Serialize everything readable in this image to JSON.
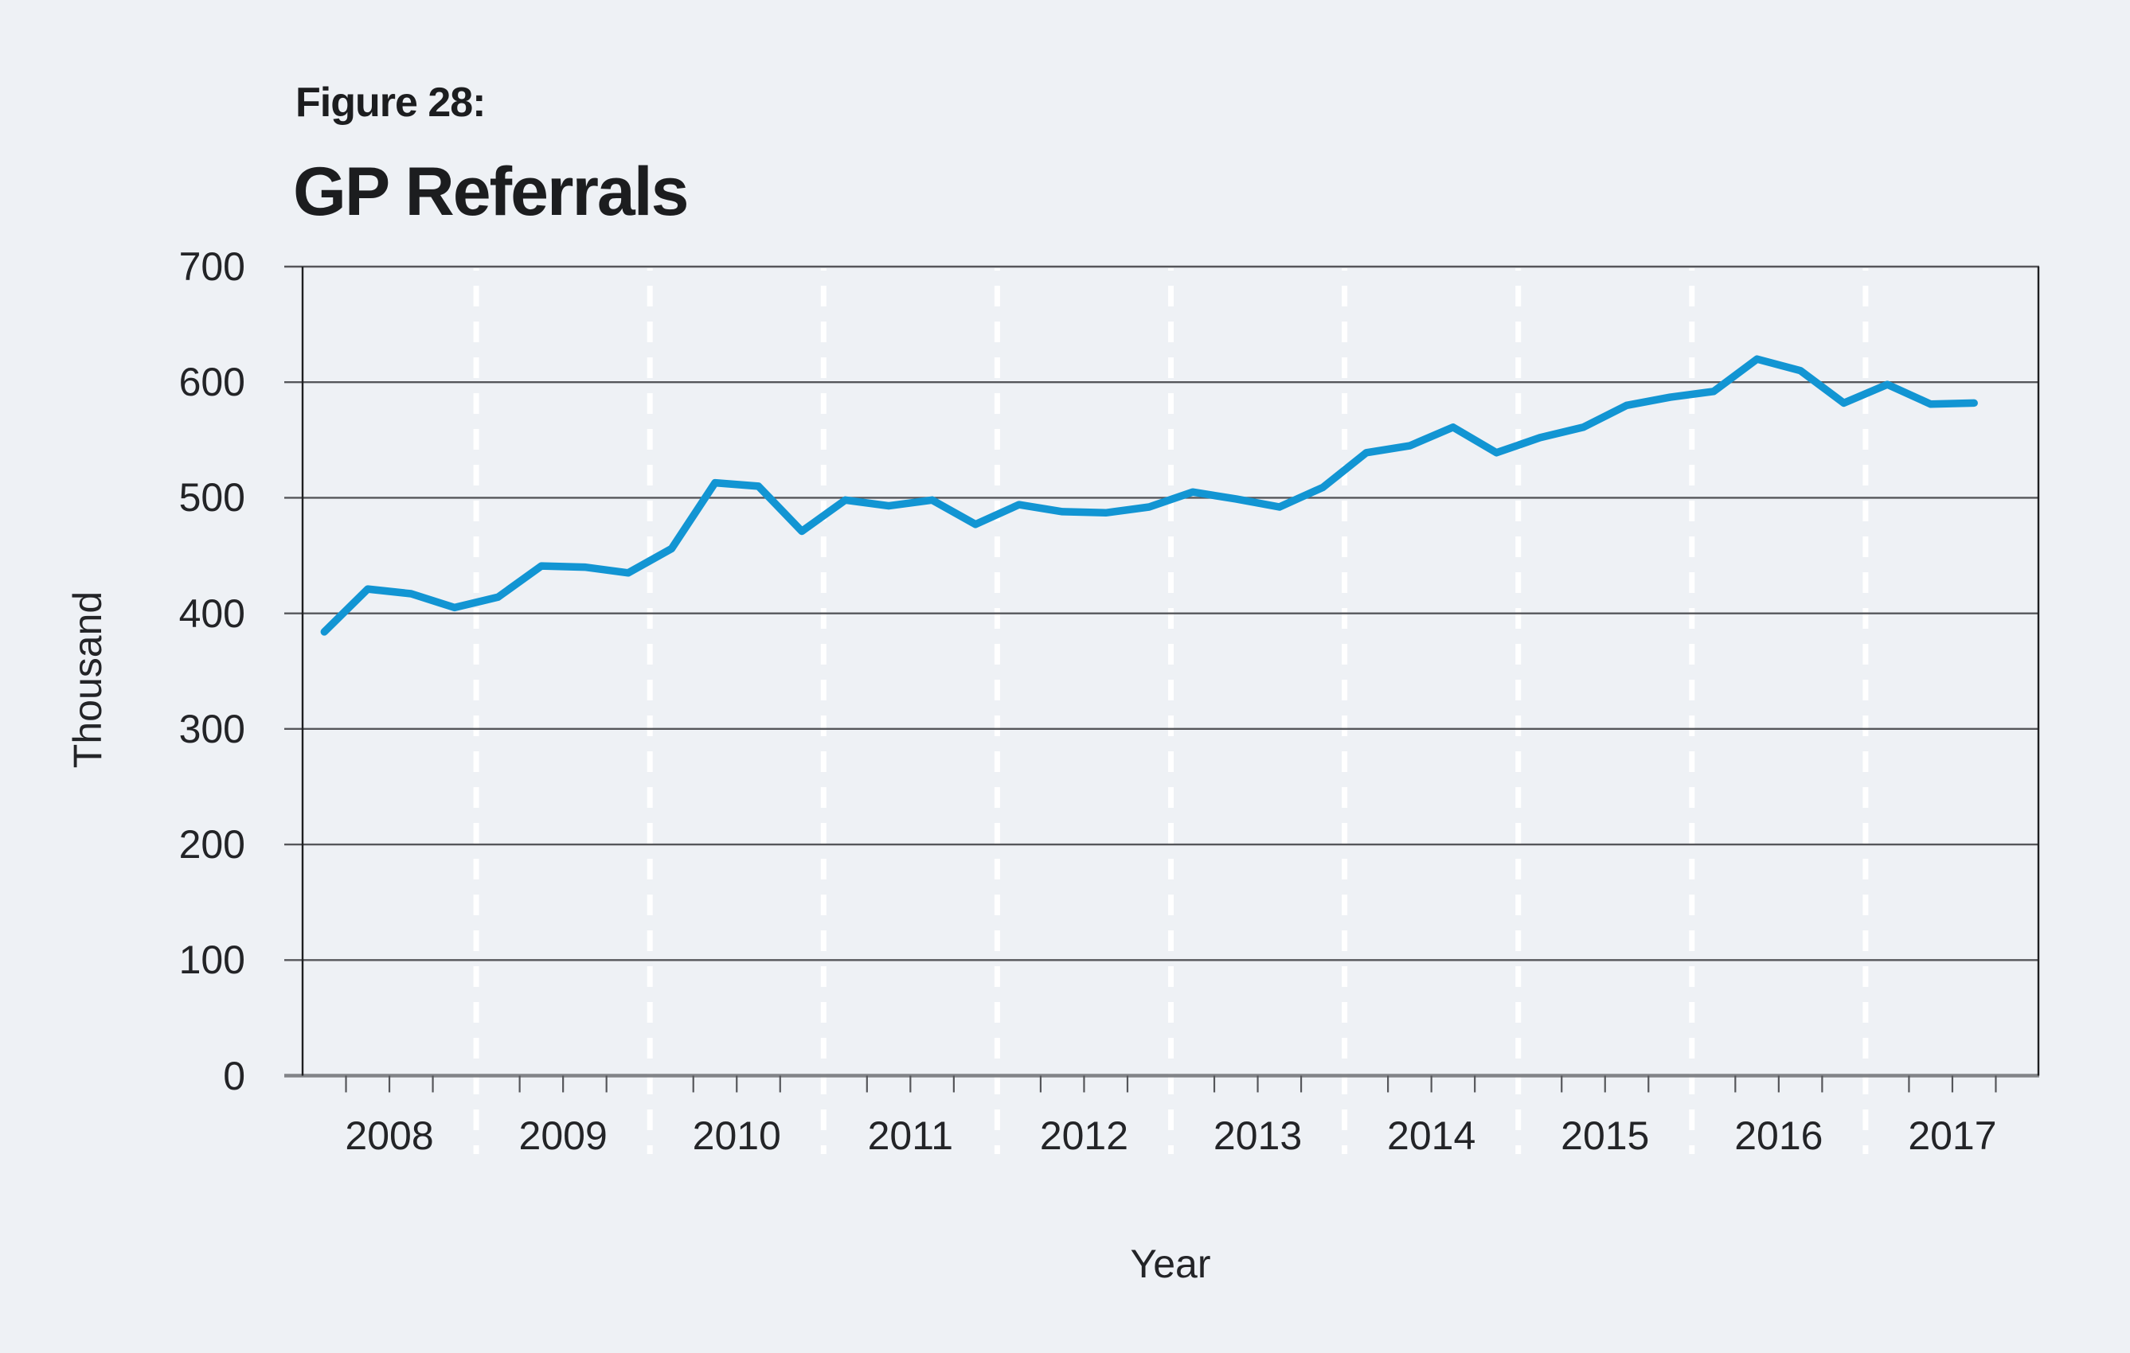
{
  "figure": {
    "label": "Figure 28:",
    "title": "GP Referrals"
  },
  "axes": {
    "y_axis_title": "Thousand",
    "x_axis_title": "Year",
    "y_tick_labels": [
      "700",
      "600",
      "500",
      "400",
      "300",
      "200",
      "100",
      "0"
    ],
    "x_tick_labels": [
      "2008",
      "2009",
      "2010",
      "2011",
      "2012",
      "2013",
      "2014",
      "2015",
      "2016",
      "2017"
    ]
  },
  "chart_data": {
    "type": "line",
    "title": "GP Referrals",
    "xlabel": "Year",
    "ylabel": "Thousand",
    "ylim": [
      0,
      700
    ],
    "y_ticks": [
      700,
      600,
      500,
      400,
      300,
      200,
      100,
      0
    ],
    "grid": "horizontal solid gray lines; vertical white dashed lines at year boundaries; quarterly tick marks below x-axis",
    "legend_position": "none",
    "categories": [
      "2008 Q1",
      "2008 Q2",
      "2008 Q3",
      "2008 Q4",
      "2009 Q1",
      "2009 Q2",
      "2009 Q3",
      "2009 Q4",
      "2010 Q1",
      "2010 Q2",
      "2010 Q3",
      "2010 Q4",
      "2011 Q1",
      "2011 Q2",
      "2011 Q3",
      "2011 Q4",
      "2012 Q1",
      "2012 Q2",
      "2012 Q3",
      "2012 Q4",
      "2013 Q1",
      "2013 Q2",
      "2013 Q3",
      "2013 Q4",
      "2014 Q1",
      "2014 Q2",
      "2014 Q3",
      "2014 Q4",
      "2015 Q1",
      "2015 Q2",
      "2015 Q3",
      "2015 Q4",
      "2016 Q1",
      "2016 Q2",
      "2016 Q3",
      "2016 Q4",
      "2017 Q1",
      "2017 Q2",
      "2017 Q3"
    ],
    "series": [
      {
        "name": "GP Referrals",
        "values": [
          384,
          421,
          417,
          405,
          414,
          441,
          440,
          435,
          456,
          513,
          510,
          471,
          498,
          493,
          498,
          477,
          494,
          488,
          487,
          492,
          505,
          499,
          492,
          509,
          539,
          545,
          561,
          539,
          552,
          561,
          580,
          587,
          592,
          620,
          610,
          582,
          598,
          581,
          582
        ]
      }
    ]
  },
  "colors": {
    "background": "#eef1f5",
    "series_line": "#1295d3",
    "gridline": "#55565a",
    "x_axis_line": "#828488",
    "axis_border": "#1e1f21",
    "year_dash": "#ffffff",
    "text": "#1c1d1f"
  }
}
